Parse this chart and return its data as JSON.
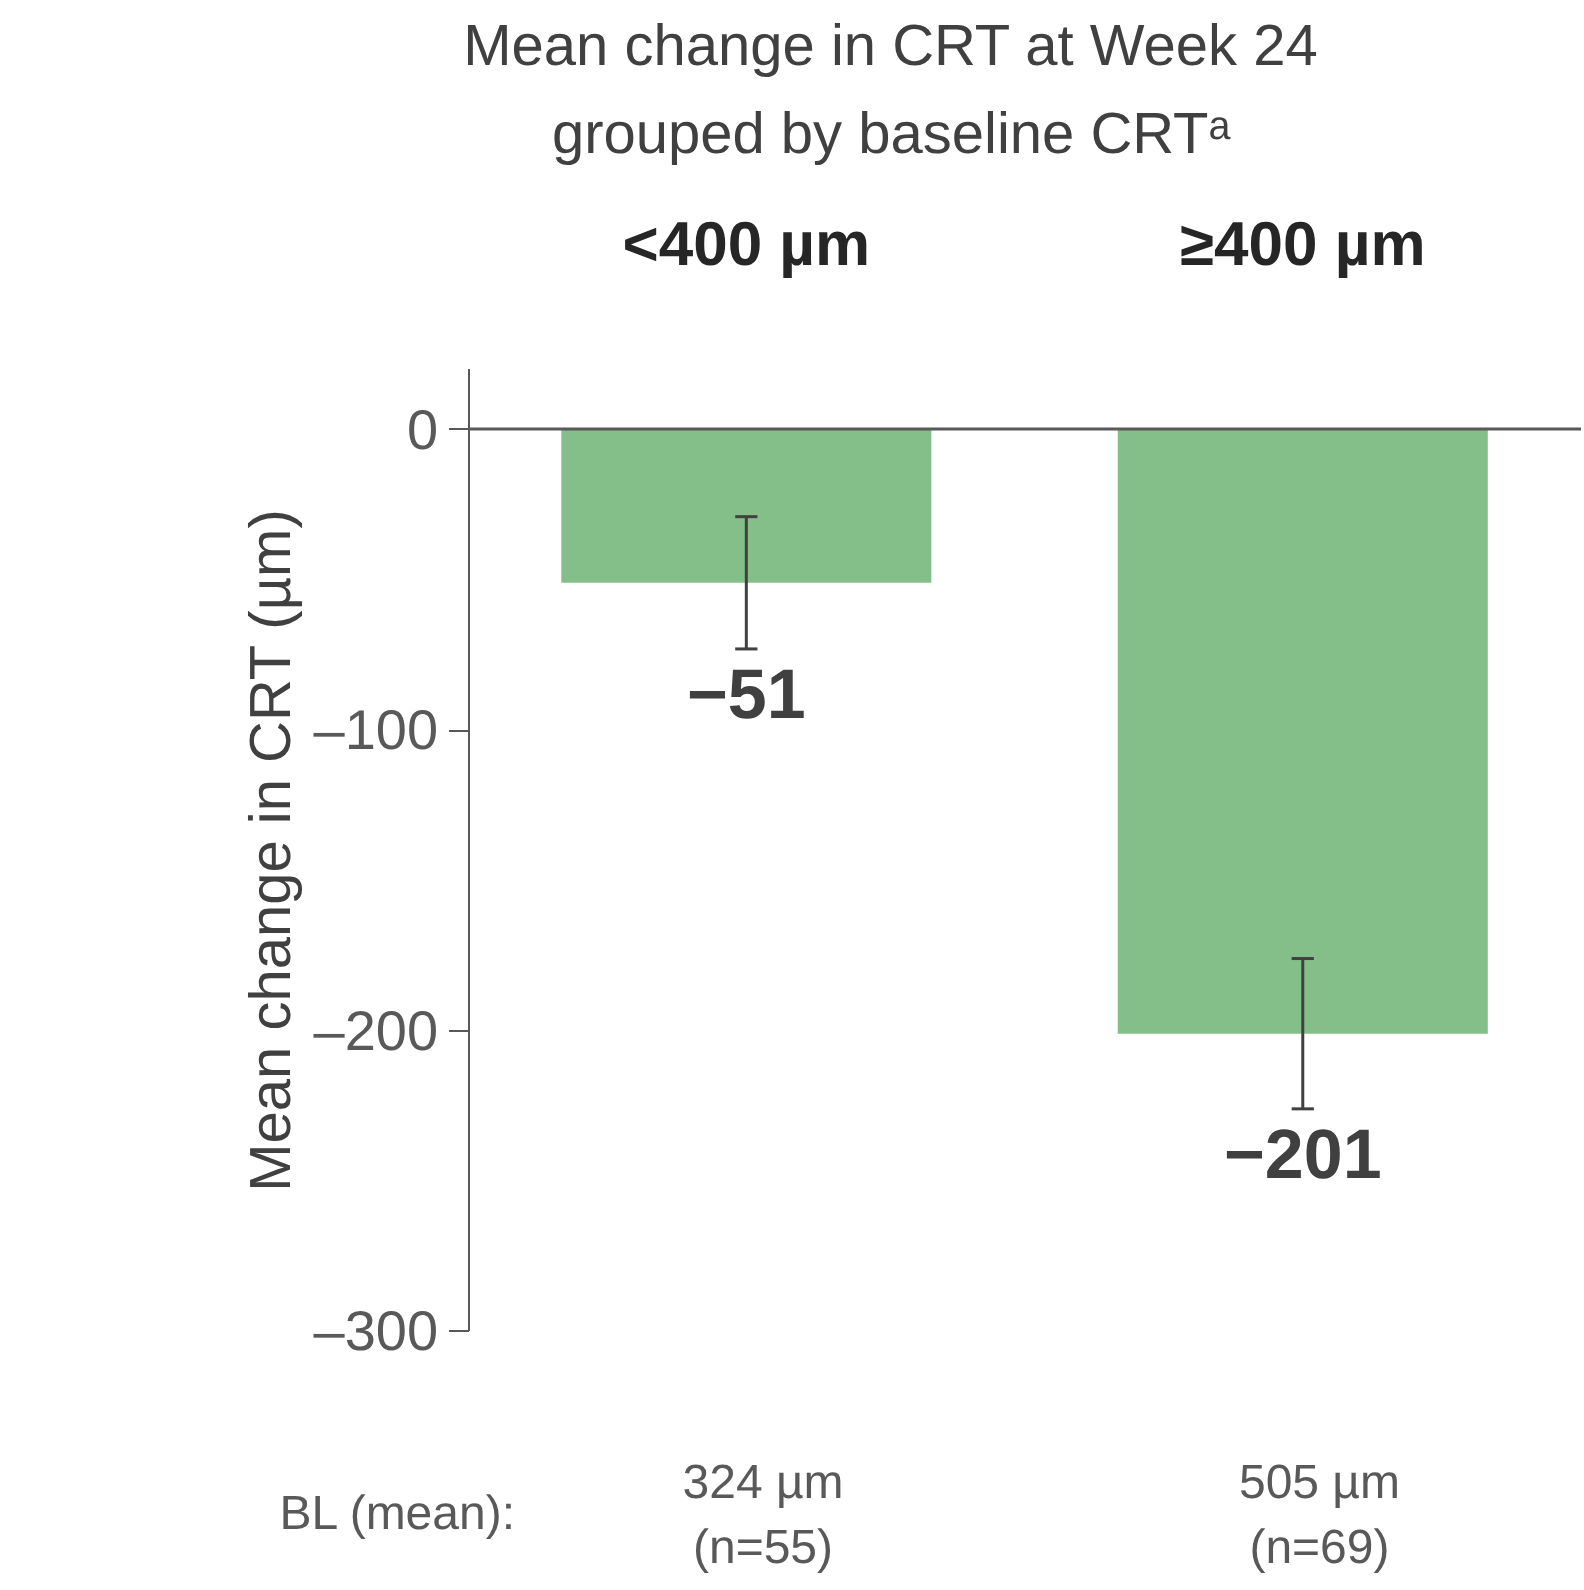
{
  "chart_data": {
    "type": "bar",
    "title": "Mean change in CRT at Week 24",
    "subtitle": "grouped by baseline CRTᵃ",
    "ylabel": "Mean change in CRT (µm)",
    "categories": [
      "<400 µm",
      "≥400 µm"
    ],
    "values": [
      -51,
      -201
    ],
    "color": "#84bf8a",
    "errors": [
      22,
      25
    ],
    "value_labels": [
      "−51",
      "−201"
    ],
    "ylim": [
      -300,
      20
    ],
    "yticks": [
      0,
      {
        "value": -100,
        "label": "–100"
      },
      {
        "value": -200,
        "label": "–200"
      },
      {
        "value": -300,
        "label": "–300"
      }
    ],
    "annotations": [
      "BL (mean):",
      "324 µm\n(n=55)",
      "505 µm\n(n=69)"
    ],
    "grid": false
  }
}
